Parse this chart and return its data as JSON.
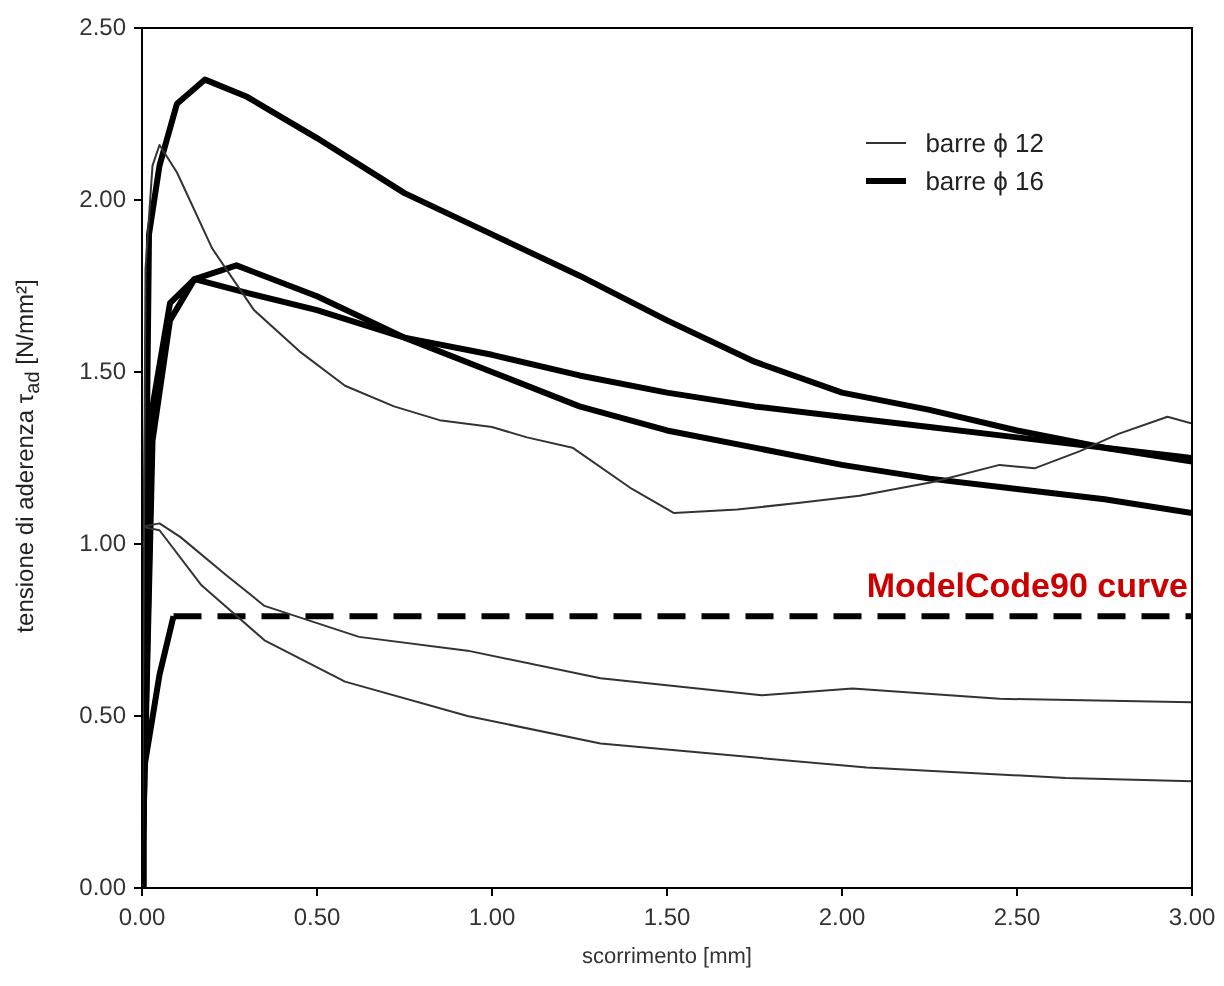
{
  "chart_data": {
    "type": "line",
    "xlabel": "scorrimento [mm]",
    "ylabel": "tensione di aderenza τ$_{ad}$ [N/mm²]",
    "xlim": [
      0,
      3
    ],
    "ylim": [
      0,
      2.5
    ],
    "xticks": [
      {
        "value": 0,
        "label": "0.00"
      },
      {
        "value": 0.5,
        "label": "0.50"
      },
      {
        "value": 1,
        "label": "1.00"
      },
      {
        "value": 1.5,
        "label": "1.50"
      },
      {
        "value": 2,
        "label": "2.00"
      },
      {
        "value": 2.5,
        "label": "2.50"
      },
      {
        "value": 3,
        "label": "3.00"
      }
    ],
    "yticks": [
      {
        "value": 0,
        "label": "0.00"
      },
      {
        "value": 0.5,
        "label": "0.50"
      },
      {
        "value": 1,
        "label": "1.00"
      },
      {
        "value": 1.5,
        "label": "1.50"
      },
      {
        "value": 2,
        "label": "2.00"
      },
      {
        "value": 2.5,
        "label": "2.50"
      }
    ],
    "grid": false,
    "legend": "top right",
    "marker": "none",
    "series": [
      {
        "name": "barre ϕ 12",
        "color": "#333333",
        "x": [
          0,
          0.01,
          0.03,
          0.05,
          0.1,
          0.2,
          0.32,
          0.45,
          0.58,
          0.72,
          0.85,
          1.0,
          1.1,
          1.23,
          1.4,
          1.52,
          1.7,
          1.88,
          2.05,
          2.26,
          2.45,
          2.55,
          2.68,
          2.79,
          2.93,
          3.0
        ],
        "values": [
          0,
          1.8,
          2.1,
          2.16,
          2.08,
          1.86,
          1.68,
          1.56,
          1.46,
          1.4,
          1.36,
          1.34,
          1.31,
          1.28,
          1.16,
          1.09,
          1.1,
          1.12,
          1.14,
          1.18,
          1.23,
          1.22,
          1.27,
          1.32,
          1.37,
          1.35
        ]
      },
      {
        "color": "#333333",
        "x": [
          0,
          0.05,
          0.11,
          0.24,
          0.35,
          0.62,
          0.93,
          1.31,
          1.77,
          2.03,
          2.45,
          3.0
        ],
        "values": [
          1.05,
          1.06,
          1.02,
          0.91,
          0.82,
          0.73,
          0.69,
          0.61,
          0.56,
          0.58,
          0.55,
          0.54
        ]
      },
      {
        "color": "#333333",
        "x": [
          0,
          0.05,
          0.17,
          0.35,
          0.58,
          0.93,
          1.31,
          2.07,
          2.64,
          3.0
        ],
        "values": [
          1.05,
          1.04,
          0.88,
          0.72,
          0.6,
          0.5,
          0.42,
          0.35,
          0.32,
          0.31
        ]
      },
      {
        "name": "barre ϕ 16",
        "color": "#000000",
        "x": [
          0,
          0.02,
          0.05,
          0.1,
          0.18,
          0.3,
          0.5,
          0.75,
          1.0,
          1.25,
          1.5,
          1.75,
          2.0,
          2.25,
          2.5,
          2.75,
          3.0
        ],
        "values": [
          0,
          1.9,
          2.1,
          2.28,
          2.35,
          2.3,
          2.18,
          2.02,
          1.9,
          1.78,
          1.65,
          1.53,
          1.44,
          1.39,
          1.33,
          1.28,
          1.24
        ]
      },
      {
        "color": "#000000",
        "x": [
          0,
          0.03,
          0.08,
          0.15,
          0.27,
          0.5,
          0.75,
          1.0,
          1.25,
          1.5,
          1.75,
          2.0,
          2.25,
          2.5,
          2.75,
          3.0
        ],
        "values": [
          0,
          1.3,
          1.65,
          1.77,
          1.81,
          1.72,
          1.6,
          1.5,
          1.4,
          1.33,
          1.28,
          1.23,
          1.19,
          1.16,
          1.13,
          1.09
        ]
      },
      {
        "color": "#000000",
        "x": [
          0,
          0.03,
          0.08,
          0.15,
          0.3,
          0.5,
          0.75,
          1.0,
          1.25,
          1.5,
          1.75,
          2.0,
          2.25,
          2.5,
          2.75,
          3.0
        ],
        "values": [
          0,
          1.4,
          1.7,
          1.77,
          1.73,
          1.68,
          1.6,
          1.55,
          1.49,
          1.44,
          1.4,
          1.37,
          1.34,
          1.31,
          1.28,
          1.25
        ]
      },
      {
        "color": "#000000",
        "x": [
          0,
          0.005,
          0.05,
          0.09
        ],
        "values": [
          0,
          0.34,
          0.62,
          0.79
        ]
      },
      {
        "color": "#000000",
        "line_style": "dashed",
        "x": [
          0.09,
          3.0
        ],
        "values": [
          0.79,
          0.79
        ]
      }
    ],
    "annotations": [
      {
        "text": "ModelCode90 curve",
        "x": 3.0,
        "y": 0.79
      }
    ]
  }
}
